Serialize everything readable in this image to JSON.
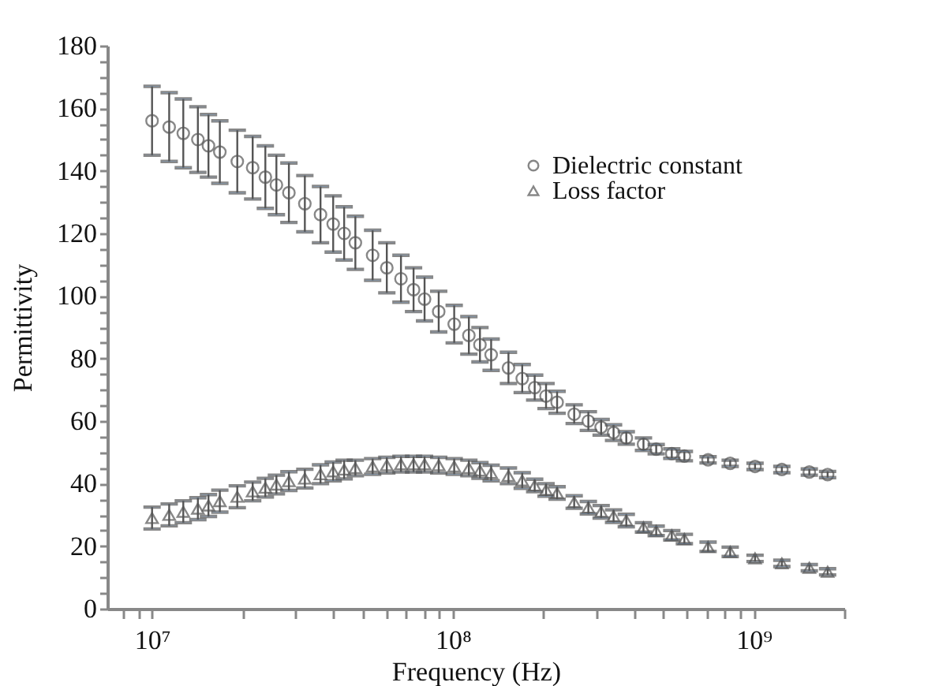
{
  "chart_data": {
    "type": "scatter",
    "xlabel": "Frequency (Hz)",
    "ylabel": "Permittivity",
    "log": "x",
    "grid": false,
    "legend": "right",
    "x": [
      10000000.0,
      11400000.0,
      12700000.0,
      14200000.0,
      15400000.0,
      16800000.0,
      19200000.0,
      21600000.0,
      23800000.0,
      25900000.0,
      28500000.0,
      32200000.0,
      36300000.0,
      40000000.0,
      43500000.0,
      47400000.0,
      54100000.0,
      60300000.0,
      67200000.0,
      74000000.0,
      80500000.0,
      89700000.0,
      101000000.0,
      113000000.0,
      123000000.0,
      134000000.0,
      153000000.0,
      170000000.0,
      187000000.0,
      204000000.0,
      222000000.0,
      253000000.0,
      282000000.0,
      311000000.0,
      342000000.0,
      377000000.0,
      430000000.0,
      474000000.0,
      534000000.0,
      588000000.0,
      705000000.0,
      835000000.0,
      1010000000.0,
      1240000000.0,
      1530000000.0,
      1760000000.0
    ],
    "series": [
      {
        "name": "Dielectric constant",
        "color": "#555555",
        "marker": "circle",
        "values": [
          156,
          154,
          152,
          150,
          148,
          146,
          143,
          141,
          138,
          135.5,
          133,
          129.5,
          126,
          123,
          120,
          117,
          113,
          109,
          105.5,
          102,
          99,
          95,
          91,
          87.4,
          84.4,
          81.2,
          77,
          73.6,
          70.7,
          68,
          66,
          62.2,
          60,
          58,
          56.3,
          54.6,
          52.6,
          51,
          49.6,
          48.8,
          47.6,
          46.5,
          45.5,
          44.5,
          43.7,
          42.9
        ],
        "errors": [
          11,
          11,
          11,
          10.5,
          10,
          10,
          10,
          10,
          10,
          9.5,
          9.5,
          9,
          9,
          9,
          8.5,
          8.5,
          8,
          8,
          7.5,
          7,
          7,
          6.5,
          6,
          6,
          5.5,
          5,
          5,
          4.5,
          4,
          4,
          3.5,
          3,
          3,
          2.5,
          2.5,
          2,
          2,
          1.5,
          1.5,
          1.5,
          1,
          1,
          1,
          1,
          1,
          1
        ]
      },
      {
        "name": "Loss factor",
        "color": "#555555",
        "marker": "triangle",
        "values": [
          29,
          30,
          31,
          32,
          33,
          34.4,
          35.8,
          37.5,
          38.7,
          39.7,
          40.8,
          41.6,
          43,
          43.9,
          44.5,
          45,
          45.5,
          45.9,
          46.2,
          46.2,
          46.2,
          45.9,
          45.5,
          45,
          44.2,
          43.4,
          42.5,
          41,
          39.4,
          38,
          37,
          34.1,
          32.3,
          31,
          29.6,
          28.2,
          26,
          24.9,
          23.5,
          22.3,
          19.8,
          18.2,
          16.1,
          14.5,
          13.1,
          11.8
        ],
        "errors": [
          3.5,
          3.5,
          3.5,
          3.5,
          3.5,
          3.5,
          3.5,
          3,
          3,
          3,
          3,
          3,
          3,
          3,
          3,
          2.5,
          2.5,
          2.5,
          2.5,
          2.5,
          2.5,
          2.5,
          2.5,
          2.5,
          2.5,
          2.5,
          2.5,
          2.5,
          2,
          2,
          2,
          2,
          2,
          2,
          2,
          2,
          1.5,
          1.5,
          1.5,
          1.5,
          1.5,
          1.5,
          1,
          1,
          1,
          1
        ]
      }
    ],
    "xlim": [
      7100000.0,
      2000000000.0
    ],
    "xticks": [
      {
        "value": 8000000.0,
        "label": null
      },
      {
        "value": 9000000.0,
        "label": null
      },
      {
        "value": 10000000.0,
        "label": "10⁷"
      },
      {
        "value": 20000000.0,
        "label": null
      },
      {
        "value": 30000000.0,
        "label": null
      },
      {
        "value": 40000000.0,
        "label": null
      },
      {
        "value": 50000000.0,
        "label": null
      },
      {
        "value": 60000000.0,
        "label": null
      },
      {
        "value": 70000000.0,
        "label": null
      },
      {
        "value": 80000000.0,
        "label": null
      },
      {
        "value": 90000000.0,
        "label": null
      },
      {
        "value": 100000000.0,
        "label": "10⁸"
      },
      {
        "value": 200000000.0,
        "label": null
      },
      {
        "value": 300000000.0,
        "label": null
      },
      {
        "value": 400000000.0,
        "label": null
      },
      {
        "value": 500000000.0,
        "label": null
      },
      {
        "value": 600000000.0,
        "label": null
      },
      {
        "value": 700000000.0,
        "label": null
      },
      {
        "value": 800000000.0,
        "label": null
      },
      {
        "value": 900000000.0,
        "label": null
      },
      {
        "value": 1000000000.0,
        "label": "10⁹"
      },
      {
        "value": 2000000000.0,
        "label": null
      }
    ],
    "ylim": [
      0,
      180
    ],
    "yticks": [
      0,
      {
        "value": 5,
        "label": null
      },
      {
        "value": 10,
        "label": null
      },
      {
        "value": 15,
        "label": null
      },
      20,
      {
        "value": 25,
        "label": null
      },
      {
        "value": 30,
        "label": null
      },
      {
        "value": 35,
        "label": null
      },
      40,
      {
        "value": 45,
        "label": null
      },
      {
        "value": 50,
        "label": null
      },
      {
        "value": 55,
        "label": null
      },
      60,
      {
        "value": 65,
        "label": null
      },
      {
        "value": 70,
        "label": null
      },
      {
        "value": 75,
        "label": null
      },
      80,
      {
        "value": 85,
        "label": null
      },
      {
        "value": 90,
        "label": null
      },
      {
        "value": 95,
        "label": null
      },
      100,
      {
        "value": 105,
        "label": null
      },
      {
        "value": 110,
        "label": null
      },
      {
        "value": 115,
        "label": null
      },
      120,
      {
        "value": 125,
        "label": null
      },
      {
        "value": 130,
        "label": null
      },
      {
        "value": 135,
        "label": null
      },
      140,
      {
        "value": 145,
        "label": null
      },
      {
        "value": 150,
        "label": null
      },
      {
        "value": 155,
        "label": null
      },
      160,
      {
        "value": 165,
        "label": null
      },
      {
        "value": 170,
        "label": null
      },
      {
        "value": 175,
        "label": null
      },
      180
    ]
  }
}
